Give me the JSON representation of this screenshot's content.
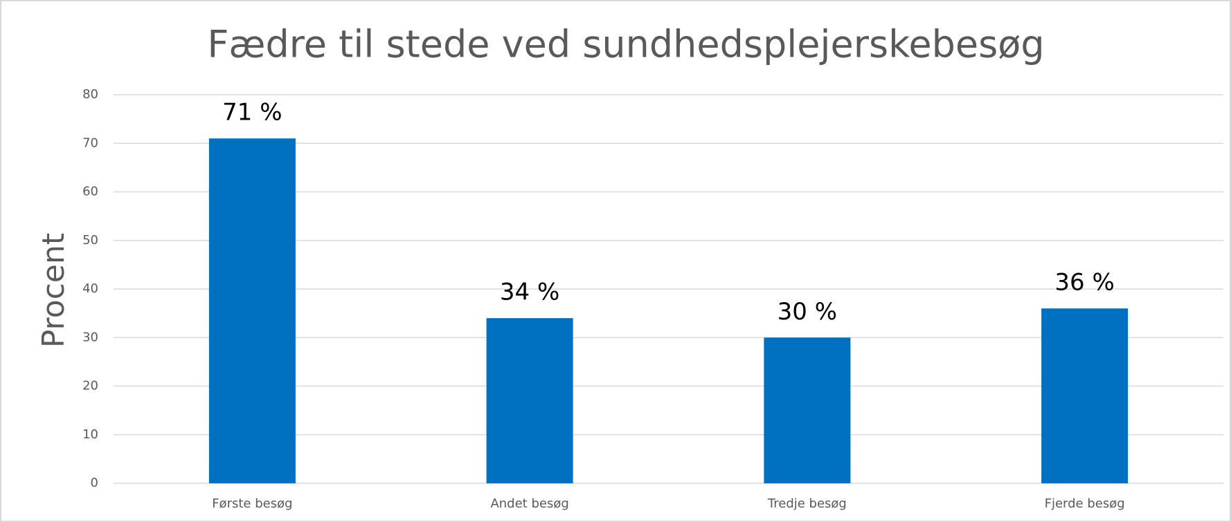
{
  "chart_data": {
    "type": "bar",
    "title": "Fædre til stede ved sundhedsplejerskebesøg",
    "y_label": "Procent",
    "categories": [
      "Første besøg",
      "Andet besøg",
      "Tredje besøg",
      "Fjerde besøg"
    ],
    "values": [
      71,
      34,
      30,
      36
    ],
    "value_labels": [
      "71 %",
      "34 %",
      "30 %",
      "36 %"
    ],
    "color": "#0070c0",
    "ylim": [
      0,
      80
    ],
    "yticks": [
      0,
      10,
      20,
      30,
      40,
      50,
      60,
      70,
      80
    ],
    "grid": true
  }
}
